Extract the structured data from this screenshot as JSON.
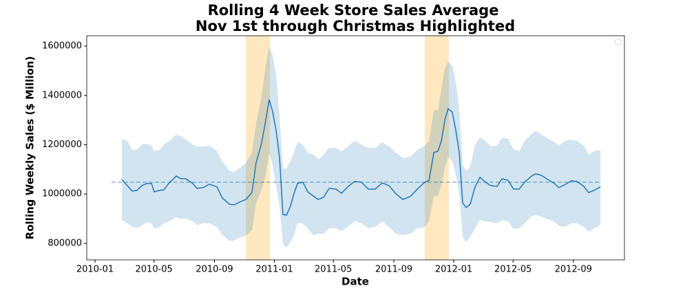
{
  "chart_data": {
    "type": "line",
    "title": "Rolling 4 Week Store Sales Average",
    "subtitle": "Nov 1st through Christmas Highlighted",
    "x_label": "Date",
    "y_label": "Rolling Weekly Sales ($ Million)",
    "xlim": [
      2009.954,
      2012.952
    ],
    "ylim": [
      733000,
      1642000
    ],
    "xticks": [
      {
        "value": 2010.0,
        "label": "2010-01"
      },
      {
        "value": 2010.329,
        "label": "2010-05"
      },
      {
        "value": 2010.666,
        "label": "2010-09"
      },
      {
        "value": 2011.0,
        "label": "2011-01"
      },
      {
        "value": 2011.329,
        "label": "2011-05"
      },
      {
        "value": 2011.666,
        "label": "2011-09"
      },
      {
        "value": 2012.0,
        "label": "2012-01"
      },
      {
        "value": 2012.331,
        "label": "2012-05"
      },
      {
        "value": 2012.667,
        "label": "2012-09"
      }
    ],
    "yticks": [
      800000,
      1000000,
      1200000,
      1400000,
      1600000
    ],
    "legend": "upper right",
    "x": [
      2010.15,
      2010.18,
      2010.207,
      2010.234,
      2010.261,
      2010.288,
      2010.315,
      2010.33,
      2010.361,
      2010.384,
      2010.411,
      2010.453,
      2010.48,
      2010.507,
      2010.545,
      2010.568,
      2010.603,
      2010.637,
      2010.68,
      2010.71,
      2010.749,
      2010.775,
      2010.814,
      2010.841,
      2010.875,
      2010.898,
      2010.929,
      2010.952,
      2010.971,
      2010.99,
      2011.01,
      2011.029,
      2011.048,
      2011.067,
      2011.09,
      2011.109,
      2011.129,
      2011.159,
      2011.186,
      2011.217,
      2011.244,
      2011.275,
      2011.305,
      2011.344,
      2011.374,
      2011.409,
      2011.447,
      2011.486,
      2011.524,
      2011.562,
      2011.601,
      2011.639,
      2011.678,
      2011.716,
      2011.758,
      2011.797,
      2011.839,
      2011.862,
      2011.889,
      2011.912,
      2011.931,
      2011.95,
      2011.969,
      2011.992,
      2012.012,
      2012.031,
      2012.05,
      2012.069,
      2012.092,
      2012.119,
      2012.146,
      2012.177,
      2012.207,
      2012.242,
      2012.269,
      2012.303,
      2012.334,
      2012.365,
      2012.395,
      2012.434,
      2012.457,
      2012.488,
      2012.518,
      2012.557,
      2012.587,
      2012.618,
      2012.656,
      2012.687,
      2012.726,
      2012.752,
      2012.783,
      2012.818
    ],
    "mean": {
      "color": "#1f77b4",
      "values": [
        1059000,
        1034000,
        1012000,
        1015000,
        1034000,
        1043000,
        1043000,
        1009000,
        1015000,
        1017000,
        1043000,
        1073000,
        1062000,
        1062000,
        1043000,
        1023000,
        1026000,
        1040000,
        1029000,
        984000,
        959000,
        956000,
        970000,
        978000,
        1006000,
        1126000,
        1207000,
        1299000,
        1383000,
        1335000,
        1257000,
        1146000,
        917000,
        914000,
        951000,
        1001000,
        1043000,
        1048000,
        1009000,
        992000,
        978000,
        987000,
        1023000,
        1020000,
        1003000,
        1029000,
        1051000,
        1048000,
        1020000,
        1020000,
        1045000,
        1034000,
        1001000,
        978000,
        990000,
        1020000,
        1048000,
        1054000,
        1168000,
        1174000,
        1215000,
        1299000,
        1346000,
        1332000,
        1257000,
        1168000,
        964000,
        945000,
        959000,
        1029000,
        1068000,
        1048000,
        1034000,
        1031000,
        1062000,
        1056000,
        1020000,
        1020000,
        1048000,
        1073000,
        1082000,
        1076000,
        1062000,
        1045000,
        1026000,
        1037000,
        1054000,
        1051000,
        1031000,
        1006000,
        1015000,
        1029000
      ]
    },
    "band": {
      "color": "#1f77b4",
      "upper": [
        1224000,
        1215000,
        1179000,
        1179000,
        1201000,
        1204000,
        1196000,
        1174000,
        1179000,
        1201000,
        1213000,
        1240000,
        1235000,
        1221000,
        1201000,
        1193000,
        1193000,
        1196000,
        1174000,
        1132000,
        1095000,
        1090000,
        1109000,
        1126000,
        1168000,
        1285000,
        1397000,
        1522000,
        1600000,
        1564000,
        1480000,
        1318000,
        1104000,
        1104000,
        1132000,
        1168000,
        1210000,
        1201000,
        1168000,
        1160000,
        1140000,
        1160000,
        1187000,
        1187000,
        1174000,
        1193000,
        1215000,
        1201000,
        1187000,
        1187000,
        1210000,
        1193000,
        1168000,
        1146000,
        1151000,
        1179000,
        1196000,
        1215000,
        1341000,
        1341000,
        1424000,
        1508000,
        1536000,
        1522000,
        1452000,
        1341000,
        1118000,
        1095000,
        1112000,
        1201000,
        1229000,
        1215000,
        1193000,
        1196000,
        1229000,
        1224000,
        1182000,
        1174000,
        1215000,
        1243000,
        1257000,
        1243000,
        1229000,
        1213000,
        1196000,
        1215000,
        1221000,
        1215000,
        1196000,
        1160000,
        1174000,
        1179000
      ],
      "lower": [
        895000,
        881000,
        867000,
        861000,
        872000,
        886000,
        881000,
        861000,
        867000,
        881000,
        889000,
        906000,
        900000,
        900000,
        889000,
        875000,
        881000,
        881000,
        867000,
        833000,
        811000,
        811000,
        825000,
        831000,
        853000,
        962000,
        1020000,
        1076000,
        1168000,
        1118000,
        1034000,
        951000,
        797000,
        783000,
        806000,
        833000,
        881000,
        881000,
        861000,
        833000,
        839000,
        839000,
        861000,
        861000,
        850000,
        867000,
        889000,
        881000,
        861000,
        867000,
        889000,
        867000,
        839000,
        833000,
        839000,
        861000,
        867000,
        889000,
        992000,
        992000,
        1034000,
        1104000,
        1151000,
        1132000,
        1076000,
        1006000,
        825000,
        806000,
        825000,
        861000,
        895000,
        889000,
        886000,
        881000,
        895000,
        889000,
        859000,
        861000,
        881000,
        909000,
        914000,
        909000,
        900000,
        889000,
        872000,
        867000,
        881000,
        881000,
        867000,
        847000,
        861000,
        875000
      ]
    },
    "reference_line": {
      "value": 1048000,
      "start": 2010.092,
      "end": 2012.818,
      "color": "#1f77b4"
    },
    "highlights": [
      {
        "start": 2010.841,
        "end": 2010.975
      },
      {
        "start": 2011.839,
        "end": 2011.973
      }
    ],
    "highlight_color": "#ffa500"
  }
}
